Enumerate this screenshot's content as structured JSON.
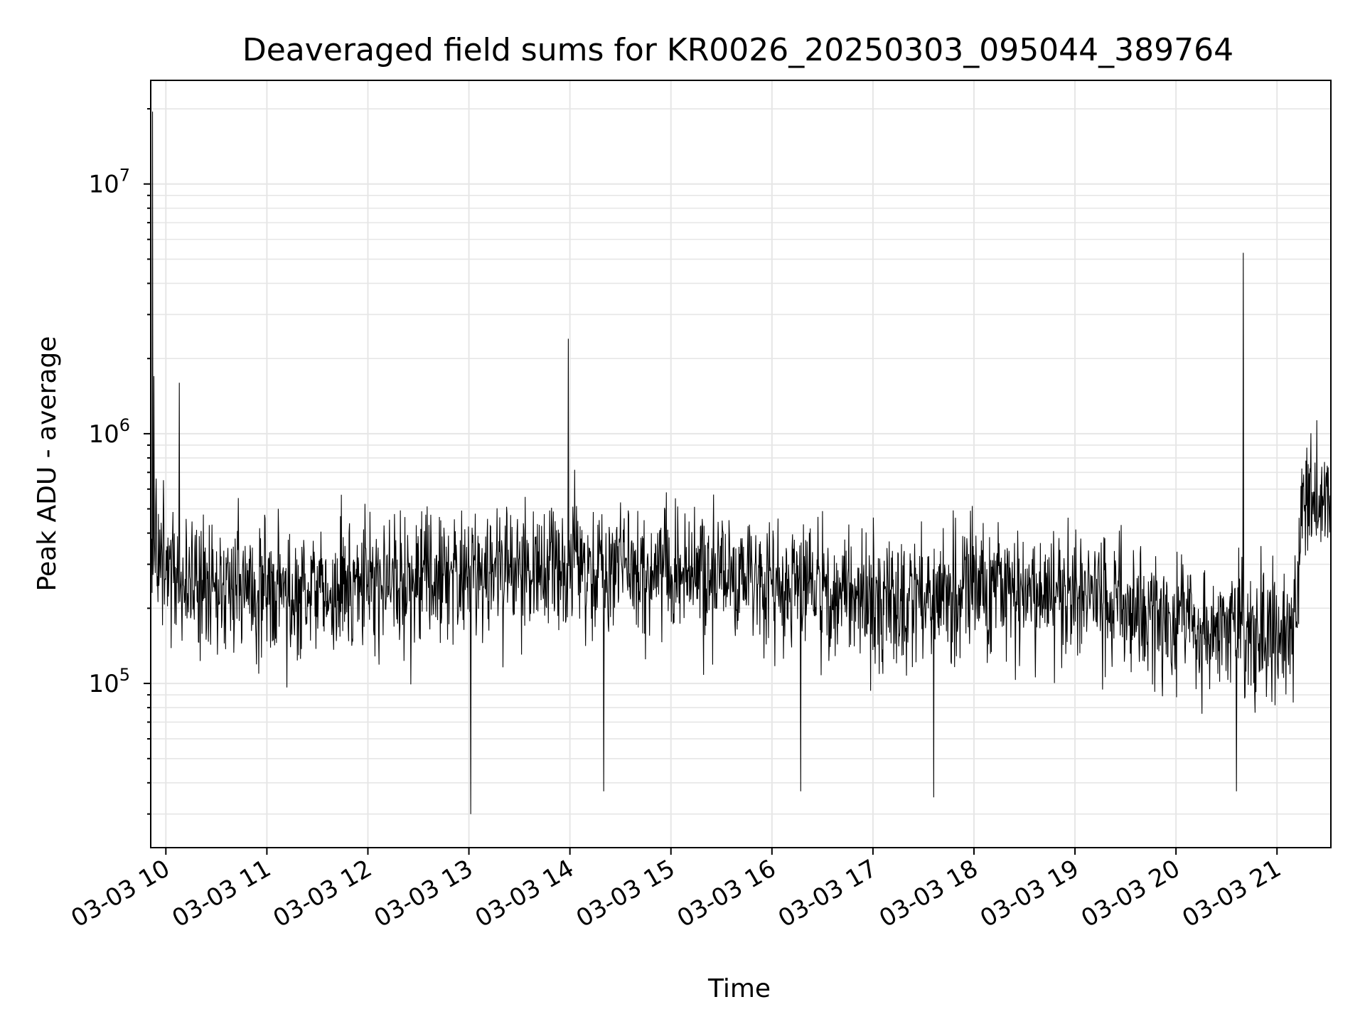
{
  "chart_data": {
    "type": "line",
    "title": "Deaveraged field sums for KR0026_20250303_095044_389764",
    "xlabel": "Time",
    "ylabel": "Peak ADU - average",
    "yscale": "log",
    "xlim": [
      "2025-03-03 09:51",
      "2025-03-03 21:32"
    ],
    "ylim": [
      22000,
      26000000
    ],
    "grid": true,
    "x_ticks": [
      "03-03 10",
      "03-03 11",
      "03-03 12",
      "03-03 13",
      "03-03 14",
      "03-03 15",
      "03-03 16",
      "03-03 17",
      "03-03 18",
      "03-03 19",
      "03-03 20",
      "03-03 21"
    ],
    "y_ticks": [
      {
        "value": 100000,
        "base": "10",
        "exp": "5"
      },
      {
        "value": 1000000,
        "base": "10",
        "exp": "6"
      },
      {
        "value": 10000000,
        "base": "10",
        "exp": "7"
      }
    ],
    "line_color": "#000000",
    "baseline": [
      [
        "09:51",
        350000
      ],
      [
        "10:00",
        300000
      ],
      [
        "10:10",
        250000
      ],
      [
        "10:30",
        250000
      ],
      [
        "11:00",
        230000
      ],
      [
        "11:30",
        230000
      ],
      [
        "12:00",
        240000
      ],
      [
        "12:30",
        250000
      ],
      [
        "13:00",
        260000
      ],
      [
        "13:30",
        280000
      ],
      [
        "14:00",
        290000
      ],
      [
        "14:30",
        290000
      ],
      [
        "15:00",
        280000
      ],
      [
        "15:30",
        270000
      ],
      [
        "16:00",
        250000
      ],
      [
        "16:30",
        230000
      ],
      [
        "17:00",
        210000
      ],
      [
        "17:30",
        230000
      ],
      [
        "18:00",
        240000
      ],
      [
        "18:30",
        230000
      ],
      [
        "19:00",
        220000
      ],
      [
        "19:30",
        200000
      ],
      [
        "20:00",
        180000
      ],
      [
        "20:30",
        170000
      ],
      [
        "21:00",
        160000
      ],
      [
        "21:10",
        170000
      ],
      [
        "21:15",
        500000
      ],
      [
        "21:32",
        600000
      ]
    ],
    "spikes": [
      {
        "x": "09:52",
        "y": 19500000
      },
      {
        "x": "09:53",
        "y": 1700000
      },
      {
        "x": "10:08",
        "y": 1600000
      },
      {
        "x": "13:01",
        "y": 30000
      },
      {
        "x": "13:59",
        "y": 2400000
      },
      {
        "x": "14:20",
        "y": 37000
      },
      {
        "x": "16:17",
        "y": 37000
      },
      {
        "x": "17:36",
        "y": 35000
      },
      {
        "x": "20:40",
        "y": 5300000
      },
      {
        "x": "20:36",
        "y": 37000
      }
    ]
  }
}
